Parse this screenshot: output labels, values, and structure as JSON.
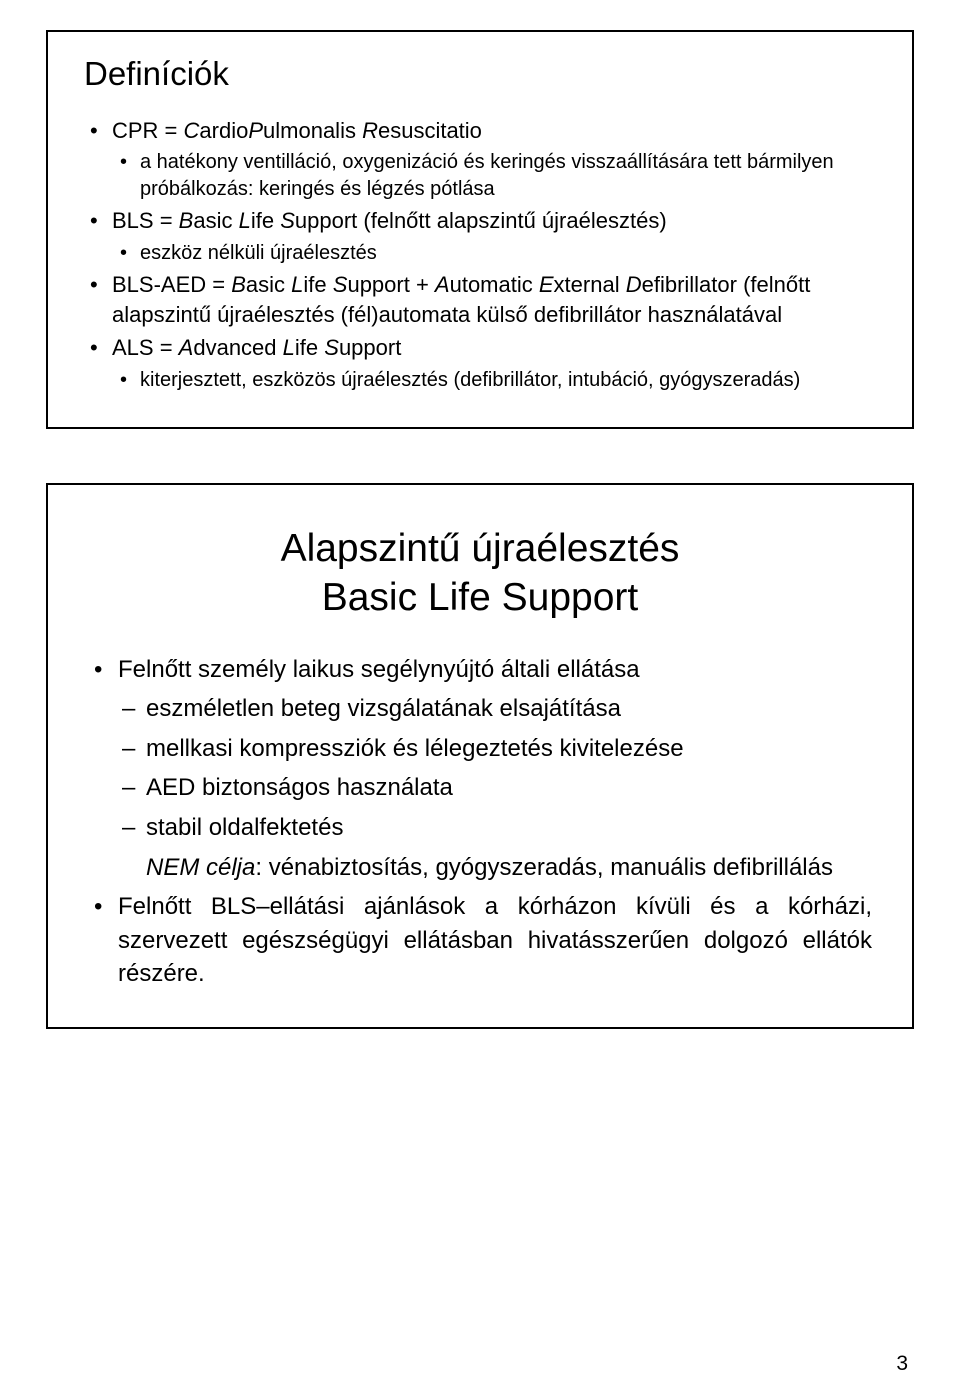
{
  "page": {
    "number": "3"
  },
  "slide1": {
    "title": "Definíciók",
    "items": [
      {
        "level": 1,
        "html": "CPR = <span class=\"italic\">C</span>ardio<span class=\"italic\">P</span>ulmonalis <span class=\"italic\">R</span>esuscitatio"
      },
      {
        "level": 2,
        "text": "a hatékony ventilláció, oxygenizáció és keringés visszaállítására tett bármilyen próbálkozás: keringés és légzés pótlása"
      },
      {
        "level": 1,
        "html": "BLS  = <span class=\"italic\">B</span>asic <span class=\"italic\">L</span>ife <span class=\"italic\">S</span>upport (felnőtt alapszintű újraélesztés)"
      },
      {
        "level": 2,
        "text": "eszköz nélküli újraélesztés"
      },
      {
        "level": 1,
        "html": "BLS-AED = <span class=\"italic\">B</span>asic <span class=\"italic\">L</span>ife <span class=\"italic\">S</span>upport + <span class=\"italic\">A</span>utomatic <span class=\"italic\">E</span>xternal <span class=\"italic\">D</span>efibrillator (felnőtt alapszintű újraélesztés (fél)automata külső defibrillátor használatával"
      },
      {
        "level": 1,
        "html": "ALS  = <span class=\"italic\">A</span>dvanced <span class=\"italic\">L</span>ife <span class=\"italic\">S</span>upport"
      },
      {
        "level": 2,
        "text": "kiterjesztett, eszközös újraélesztés (defibrillátor, intubáció, gyógyszeradás)"
      }
    ]
  },
  "slide2": {
    "title_line1": "Alapszintű újraélesztés",
    "title_line2": "Basic Life Support",
    "items": [
      {
        "level": 1,
        "text": "Felnőtt személy laikus segélynyújtó általi ellátása"
      },
      {
        "level": 2,
        "text": "eszméletlen beteg vizsgálatának elsajátítása"
      },
      {
        "level": 2,
        "text": "mellkasi kompressziók és lélegeztetés kivitelezése"
      },
      {
        "level": 2,
        "text": "AED biztonságos használata"
      },
      {
        "level": 2,
        "text": "stabil oldalfektetés"
      },
      {
        "level": "2nb",
        "html": "<span class=\"italic\">NEM célja</span>: vénabiztosítás, gyógyszeradás, manuális defibrillálás"
      },
      {
        "level": 1,
        "justify": true,
        "text": "Felnőtt BLS–ellátási ajánlások a kórházon kívüli és a kórházi, szervezett egészségügyi ellátásban hivatásszerűen dolgozó ellátók részére."
      }
    ]
  }
}
